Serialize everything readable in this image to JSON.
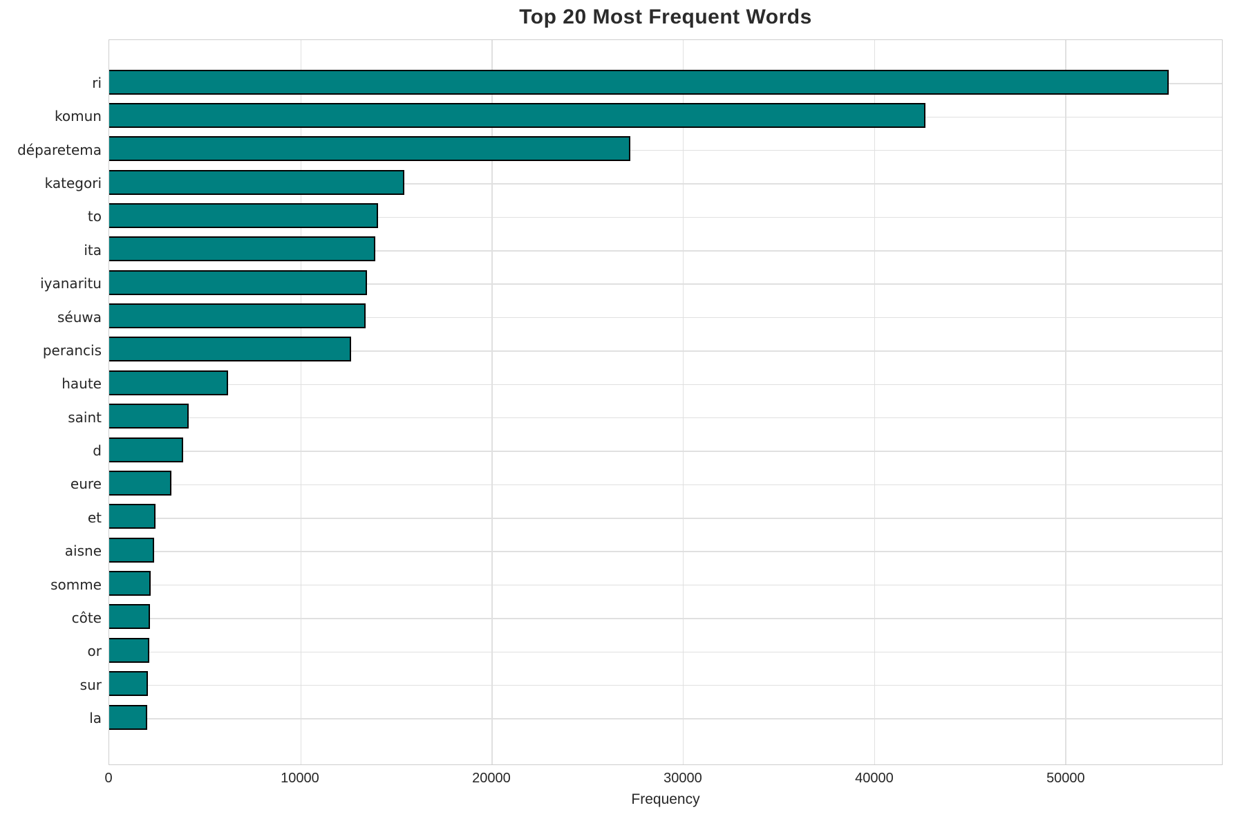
{
  "chart_data": {
    "type": "bar",
    "orientation": "horizontal",
    "title": "Top 20 Most Frequent Words",
    "xlabel": "Frequency",
    "ylabel": "",
    "categories": [
      "ri",
      "komun",
      "déparetema",
      "kategori",
      "to",
      "ita",
      "iyanaritu",
      "séuwa",
      "perancis",
      "haute",
      "saint",
      "d",
      "eure",
      "et",
      "aisne",
      "somme",
      "côte",
      "or",
      "sur",
      "la"
    ],
    "values": [
      55400,
      42700,
      27250,
      15450,
      14050,
      13900,
      13500,
      13400,
      12650,
      6200,
      4150,
      3850,
      3250,
      2420,
      2340,
      2180,
      2150,
      2100,
      2030,
      2000
    ],
    "xticks": [
      0,
      10000,
      20000,
      30000,
      40000,
      50000
    ],
    "xlim": [
      0,
      58200
    ],
    "grid": true,
    "legend": null,
    "colors": {
      "bar_fill": "#008080",
      "bar_edge": "#000000",
      "grid": "#e0e0e0",
      "frame": "#cdcdcd",
      "text": "#262626"
    }
  }
}
